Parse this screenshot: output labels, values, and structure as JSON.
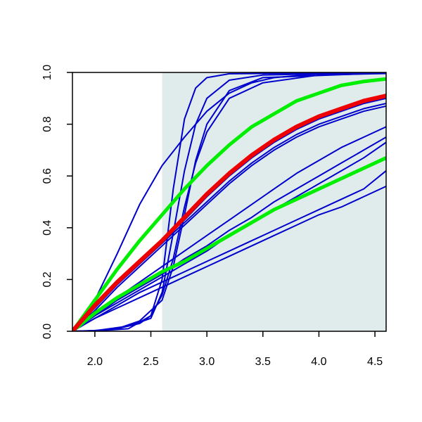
{
  "chart_data": {
    "type": "line",
    "title": "",
    "xlabel": "",
    "ylabel": "",
    "xlim": [
      1.8,
      4.6
    ],
    "ylim": [
      0.0,
      1.0
    ],
    "x_ticks": [
      "2.0",
      "2.5",
      "3.0",
      "3.5",
      "4.0",
      "4.5"
    ],
    "y_ticks": [
      "0.0",
      "0.2",
      "0.4",
      "0.6",
      "0.8",
      "1.0"
    ],
    "shaded_region": {
      "x_start": 2.6,
      "x_end": 4.6,
      "color": "#e0ecec"
    },
    "grid": false,
    "legend": "none",
    "series": [
      {
        "color": "#0000cc",
        "width": 2,
        "points": [
          [
            1.8,
            0
          ],
          [
            2.0,
            0.12
          ],
          [
            2.2,
            0.3
          ],
          [
            2.4,
            0.49
          ],
          [
            2.6,
            0.64
          ],
          [
            2.8,
            0.75
          ],
          [
            3.0,
            0.85
          ],
          [
            3.2,
            0.92
          ],
          [
            3.4,
            0.96
          ],
          [
            3.6,
            0.98
          ],
          [
            4.0,
            0.995
          ],
          [
            4.6,
            1.0
          ]
        ]
      },
      {
        "color": "#0000cc",
        "width": 2,
        "points": [
          [
            1.8,
            0
          ],
          [
            2.0,
            0.001
          ],
          [
            2.3,
            0.01
          ],
          [
            2.5,
            0.06
          ],
          [
            2.6,
            0.2
          ],
          [
            2.7,
            0.55
          ],
          [
            2.8,
            0.82
          ],
          [
            2.9,
            0.94
          ],
          [
            3.0,
            0.98
          ],
          [
            3.2,
            0.995
          ],
          [
            4.6,
            1.0
          ]
        ]
      },
      {
        "color": "#0000cc",
        "width": 2,
        "points": [
          [
            1.8,
            0
          ],
          [
            2.0,
            0.002
          ],
          [
            2.3,
            0.02
          ],
          [
            2.5,
            0.05
          ],
          [
            2.6,
            0.15
          ],
          [
            2.7,
            0.38
          ],
          [
            2.8,
            0.62
          ],
          [
            2.9,
            0.8
          ],
          [
            3.0,
            0.9
          ],
          [
            3.2,
            0.97
          ],
          [
            3.5,
            0.99
          ],
          [
            4.6,
            1.0
          ]
        ]
      },
      {
        "color": "#0000cc",
        "width": 2,
        "points": [
          [
            1.8,
            0
          ],
          [
            2.0,
            0.002
          ],
          [
            2.2,
            0.01
          ],
          [
            2.4,
            0.04
          ],
          [
            2.6,
            0.12
          ],
          [
            2.7,
            0.25
          ],
          [
            2.8,
            0.45
          ],
          [
            2.9,
            0.66
          ],
          [
            3.0,
            0.8
          ],
          [
            3.2,
            0.93
          ],
          [
            3.5,
            0.98
          ],
          [
            4.6,
            0.998
          ]
        ]
      },
      {
        "color": "#0000cc",
        "width": 2,
        "points": [
          [
            1.8,
            0
          ],
          [
            2.0,
            0.003
          ],
          [
            2.2,
            0.01
          ],
          [
            2.4,
            0.03
          ],
          [
            2.5,
            0.06
          ],
          [
            2.6,
            0.14
          ],
          [
            2.7,
            0.28
          ],
          [
            2.8,
            0.48
          ],
          [
            2.9,
            0.65
          ],
          [
            3.0,
            0.77
          ],
          [
            3.2,
            0.9
          ],
          [
            3.5,
            0.96
          ],
          [
            4.0,
            0.99
          ],
          [
            4.6,
            0.996
          ]
        ]
      },
      {
        "color": "#0000cc",
        "width": 2,
        "points": [
          [
            1.8,
            0
          ],
          [
            2.0,
            0.1
          ],
          [
            2.2,
            0.19
          ],
          [
            2.4,
            0.27
          ],
          [
            2.6,
            0.35
          ],
          [
            2.8,
            0.43
          ],
          [
            3.0,
            0.52
          ],
          [
            3.2,
            0.6
          ],
          [
            3.4,
            0.67
          ],
          [
            3.6,
            0.73
          ],
          [
            3.8,
            0.78
          ],
          [
            4.0,
            0.82
          ],
          [
            4.2,
            0.85
          ],
          [
            4.4,
            0.88
          ],
          [
            4.6,
            0.9
          ]
        ]
      },
      {
        "color": "#0000cc",
        "width": 2,
        "points": [
          [
            1.8,
            0
          ],
          [
            2.0,
            0.09
          ],
          [
            2.2,
            0.18
          ],
          [
            2.4,
            0.26
          ],
          [
            2.6,
            0.34
          ],
          [
            2.8,
            0.42
          ],
          [
            3.0,
            0.5
          ],
          [
            3.2,
            0.58
          ],
          [
            3.4,
            0.65
          ],
          [
            3.6,
            0.71
          ],
          [
            3.8,
            0.76
          ],
          [
            4.0,
            0.8
          ],
          [
            4.2,
            0.83
          ],
          [
            4.4,
            0.86
          ],
          [
            4.6,
            0.88
          ]
        ]
      },
      {
        "color": "#0000cc",
        "width": 2,
        "points": [
          [
            1.8,
            0
          ],
          [
            2.0,
            0.08
          ],
          [
            2.2,
            0.17
          ],
          [
            2.4,
            0.25
          ],
          [
            2.6,
            0.33
          ],
          [
            2.8,
            0.41
          ],
          [
            3.0,
            0.49
          ],
          [
            3.2,
            0.57
          ],
          [
            3.4,
            0.64
          ],
          [
            3.6,
            0.7
          ],
          [
            3.8,
            0.75
          ],
          [
            4.0,
            0.79
          ],
          [
            4.2,
            0.82
          ],
          [
            4.4,
            0.85
          ],
          [
            4.6,
            0.87
          ]
        ]
      },
      {
        "color": "#0000cc",
        "width": 2,
        "points": [
          [
            1.8,
            0
          ],
          [
            2.0,
            0.07
          ],
          [
            2.2,
            0.13
          ],
          [
            2.4,
            0.19
          ],
          [
            2.6,
            0.25
          ],
          [
            2.8,
            0.31
          ],
          [
            3.0,
            0.37
          ],
          [
            3.2,
            0.43
          ],
          [
            3.4,
            0.49
          ],
          [
            3.6,
            0.55
          ],
          [
            3.8,
            0.61
          ],
          [
            4.0,
            0.66
          ],
          [
            4.2,
            0.71
          ],
          [
            4.4,
            0.75
          ],
          [
            4.6,
            0.79
          ]
        ]
      },
      {
        "color": "#0000cc",
        "width": 2,
        "points": [
          [
            1.8,
            0
          ],
          [
            2.0,
            0.06
          ],
          [
            2.2,
            0.12
          ],
          [
            2.4,
            0.17
          ],
          [
            2.6,
            0.22
          ],
          [
            2.8,
            0.28
          ],
          [
            3.0,
            0.33
          ],
          [
            3.2,
            0.39
          ],
          [
            3.4,
            0.44
          ],
          [
            3.6,
            0.5
          ],
          [
            3.8,
            0.55
          ],
          [
            4.0,
            0.6
          ],
          [
            4.2,
            0.65
          ],
          [
            4.4,
            0.7
          ],
          [
            4.6,
            0.75
          ]
        ]
      },
      {
        "color": "#0000cc",
        "width": 2,
        "points": [
          [
            1.8,
            0
          ],
          [
            2.0,
            0.06
          ],
          [
            2.2,
            0.11
          ],
          [
            2.4,
            0.16
          ],
          [
            2.6,
            0.21
          ],
          [
            2.8,
            0.26
          ],
          [
            3.0,
            0.31
          ],
          [
            3.2,
            0.37
          ],
          [
            3.4,
            0.42
          ],
          [
            3.6,
            0.47
          ],
          [
            3.8,
            0.52
          ],
          [
            4.0,
            0.57
          ],
          [
            4.2,
            0.62
          ],
          [
            4.4,
            0.67
          ],
          [
            4.6,
            0.73
          ]
        ]
      },
      {
        "color": "#0000cc",
        "width": 2,
        "points": [
          [
            1.8,
            0
          ],
          [
            2.0,
            0.05
          ],
          [
            2.2,
            0.1
          ],
          [
            2.4,
            0.15
          ],
          [
            2.6,
            0.19
          ],
          [
            2.8,
            0.23
          ],
          [
            3.0,
            0.27
          ],
          [
            3.2,
            0.31
          ],
          [
            3.4,
            0.35
          ],
          [
            3.6,
            0.39
          ],
          [
            3.8,
            0.43
          ],
          [
            4.0,
            0.47
          ],
          [
            4.2,
            0.51
          ],
          [
            4.4,
            0.55
          ],
          [
            4.6,
            0.62
          ]
        ]
      },
      {
        "color": "#0000cc",
        "width": 2,
        "points": [
          [
            1.8,
            0
          ],
          [
            2.0,
            0.05
          ],
          [
            2.2,
            0.09
          ],
          [
            2.4,
            0.13
          ],
          [
            2.6,
            0.17
          ],
          [
            2.8,
            0.21
          ],
          [
            3.0,
            0.25
          ],
          [
            3.2,
            0.29
          ],
          [
            3.4,
            0.33
          ],
          [
            3.6,
            0.37
          ],
          [
            3.8,
            0.41
          ],
          [
            4.0,
            0.45
          ],
          [
            4.2,
            0.48
          ],
          [
            4.4,
            0.52
          ],
          [
            4.6,
            0.56
          ]
        ]
      },
      {
        "color": "#00ee00",
        "width": 5,
        "points": [
          [
            1.8,
            0
          ],
          [
            2.0,
            0.12
          ],
          [
            2.2,
            0.24
          ],
          [
            2.4,
            0.35
          ],
          [
            2.6,
            0.45
          ],
          [
            2.8,
            0.55
          ],
          [
            3.0,
            0.64
          ],
          [
            3.2,
            0.72
          ],
          [
            3.4,
            0.79
          ],
          [
            3.6,
            0.84
          ],
          [
            3.8,
            0.89
          ],
          [
            4.0,
            0.92
          ],
          [
            4.2,
            0.95
          ],
          [
            4.4,
            0.965
          ],
          [
            4.6,
            0.975
          ]
        ]
      },
      {
        "color": "#00ee00",
        "width": 5,
        "points": [
          [
            1.8,
            0
          ],
          [
            2.0,
            0.07
          ],
          [
            2.2,
            0.13
          ],
          [
            2.4,
            0.18
          ],
          [
            2.6,
            0.23
          ],
          [
            2.8,
            0.27
          ],
          [
            3.0,
            0.32
          ],
          [
            3.2,
            0.37
          ],
          [
            3.4,
            0.42
          ],
          [
            3.6,
            0.47
          ],
          [
            3.8,
            0.51
          ],
          [
            4.0,
            0.55
          ],
          [
            4.2,
            0.59
          ],
          [
            4.4,
            0.63
          ],
          [
            4.6,
            0.67
          ]
        ]
      },
      {
        "color": "#ee0000",
        "width": 6,
        "points": [
          [
            1.8,
            0
          ],
          [
            2.0,
            0.1
          ],
          [
            2.2,
            0.19
          ],
          [
            2.4,
            0.27
          ],
          [
            2.6,
            0.35
          ],
          [
            2.8,
            0.44
          ],
          [
            3.0,
            0.53
          ],
          [
            3.2,
            0.61
          ],
          [
            3.4,
            0.68
          ],
          [
            3.6,
            0.74
          ],
          [
            3.8,
            0.79
          ],
          [
            4.0,
            0.83
          ],
          [
            4.2,
            0.86
          ],
          [
            4.4,
            0.89
          ],
          [
            4.6,
            0.91
          ]
        ]
      }
    ]
  }
}
